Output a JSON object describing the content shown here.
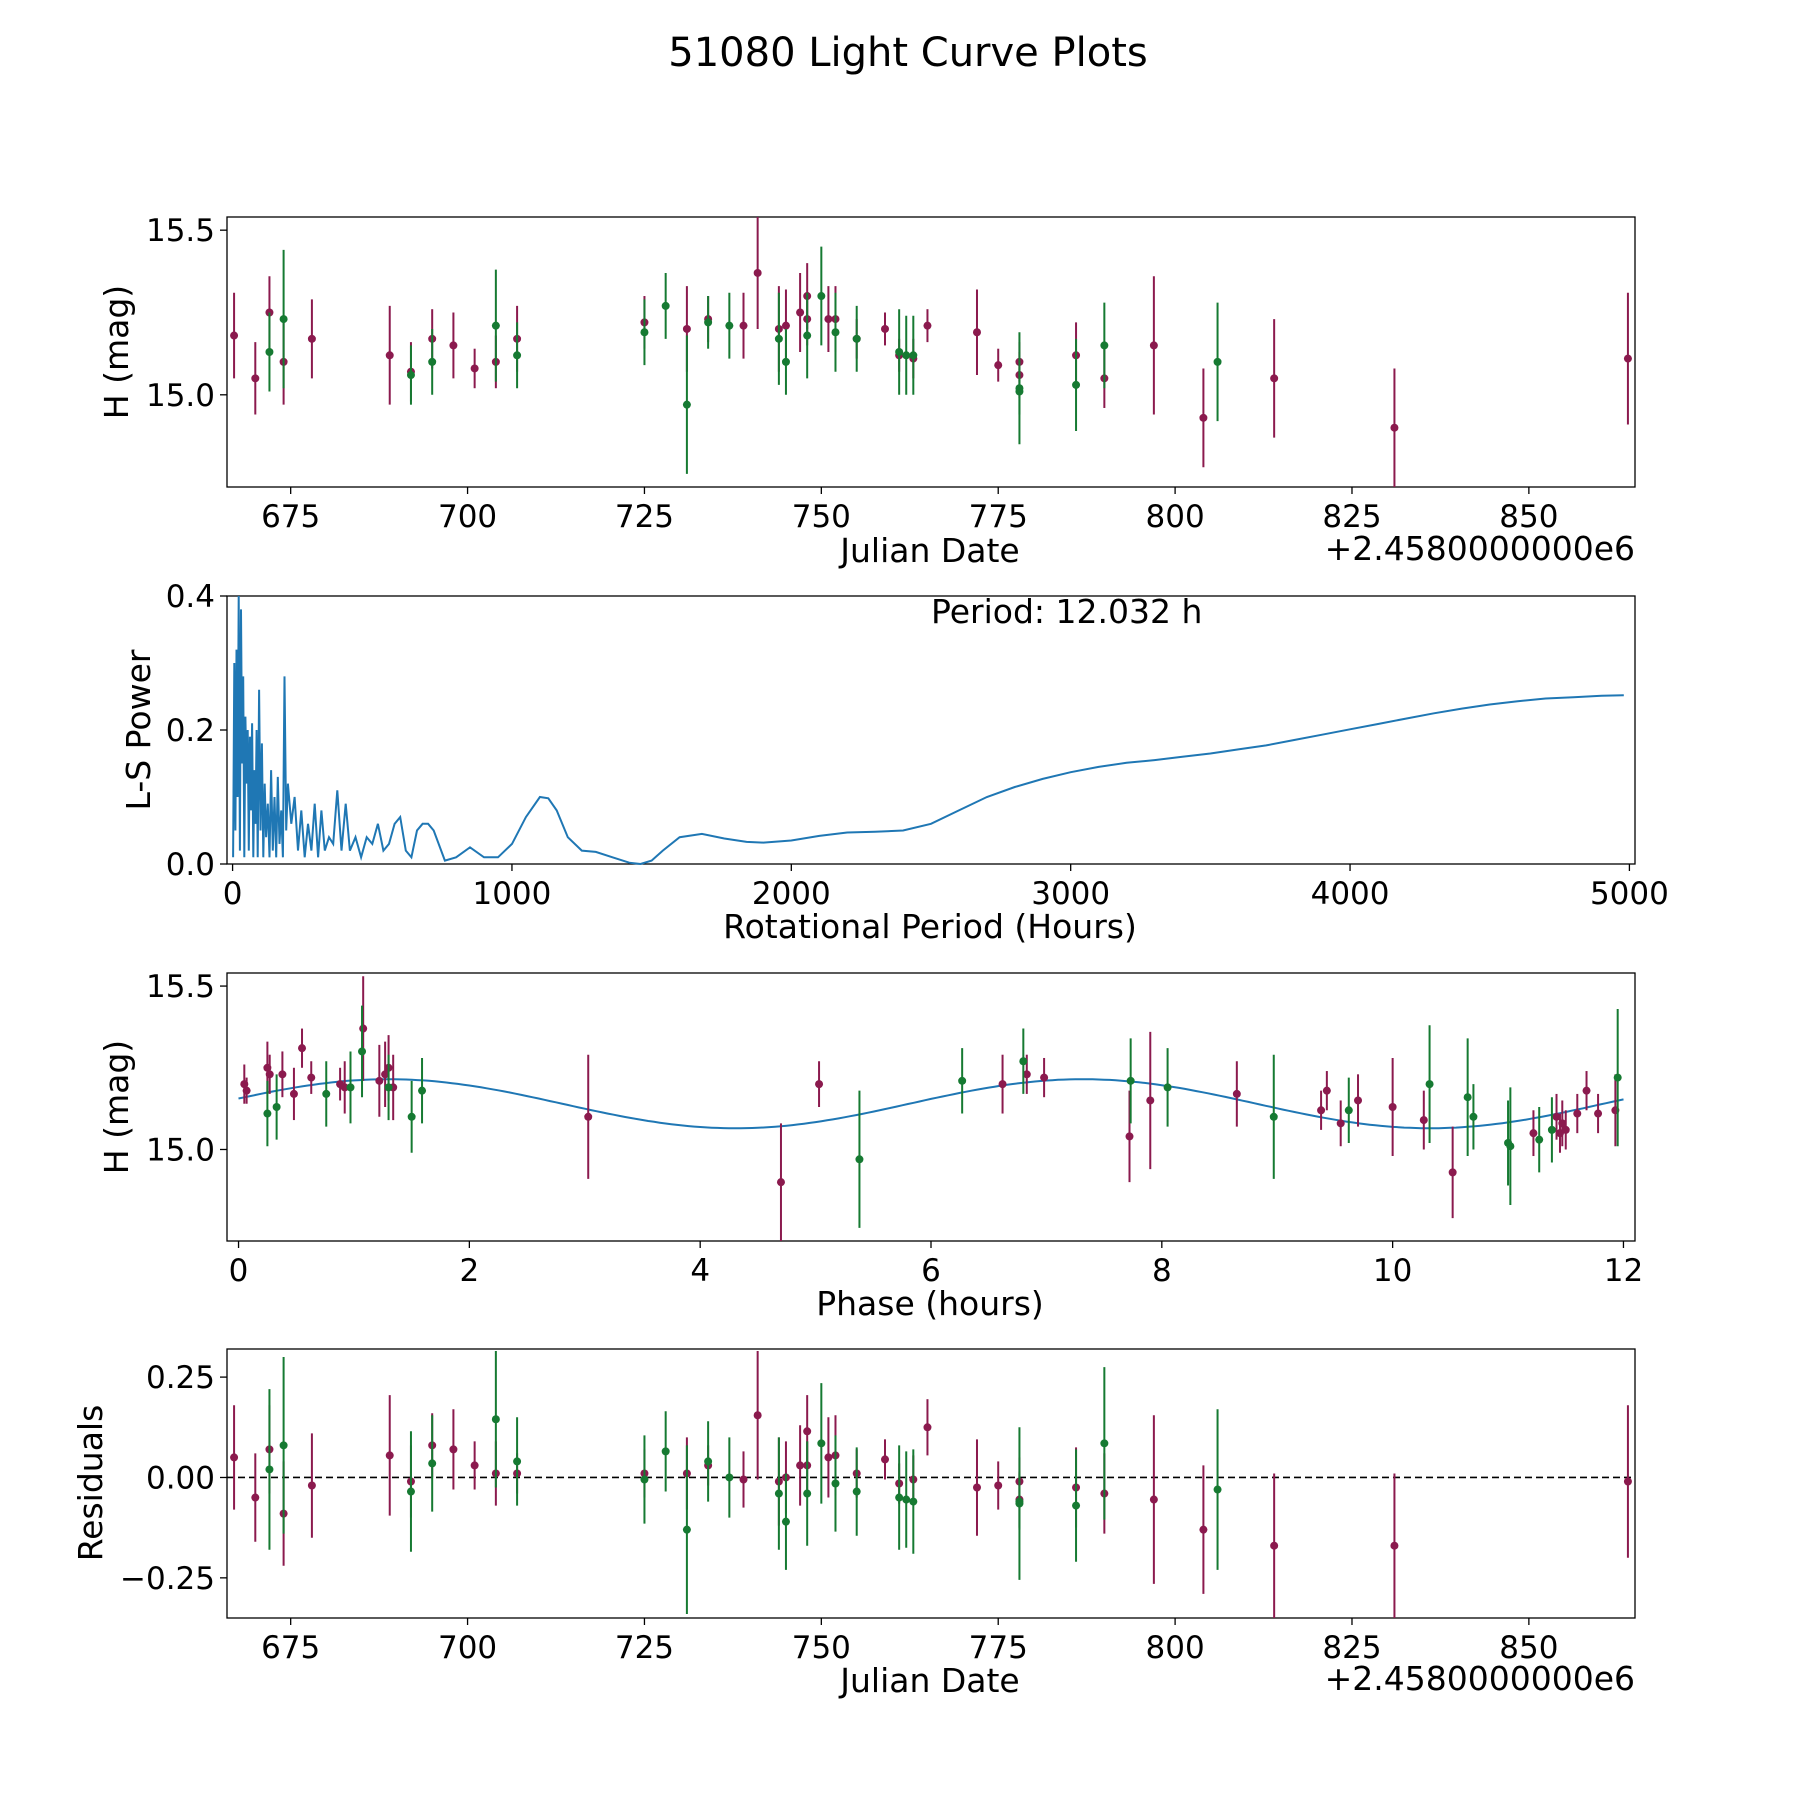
{
  "figure_title": "51080 Light Curve Plots",
  "colors": {
    "filter_r": "#8b1a4e",
    "filter_g": "#167a32",
    "curve": "#1f77b4",
    "zero_line": "#000000"
  },
  "chart_data": [
    {
      "id": "lightcurve",
      "type": "scatter",
      "title": "",
      "xlabel": "Julian Date",
      "ylabel": "H (mag)",
      "offset_label": "+2.4580000000e6",
      "xlim": [
        666,
        865
      ],
      "ylim": [
        14.72,
        15.54
      ],
      "xticks": [
        675,
        700,
        725,
        750,
        775,
        800,
        825,
        850
      ],
      "xtick_labels": [
        "675",
        "700",
        "725",
        "750",
        "775",
        "800",
        "825",
        "850"
      ],
      "yticks": [
        15.0,
        15.5
      ],
      "ytick_labels": [
        "15.0",
        "15.5"
      ],
      "series": [
        {
          "name": "r",
          "color": "#8b1a4e",
          "x": [
            667,
            670,
            672,
            674,
            678,
            689,
            692,
            695,
            698,
            701,
            704,
            707,
            725,
            731,
            734,
            739,
            741,
            744,
            745,
            747,
            748,
            748,
            751,
            752,
            755,
            759,
            761,
            763,
            765,
            772,
            775,
            778,
            778,
            786,
            790,
            797,
            804,
            814,
            831,
            864
          ],
          "y": [
            15.18,
            15.05,
            15.25,
            15.1,
            15.17,
            15.12,
            15.07,
            15.17,
            15.15,
            15.08,
            15.1,
            15.17,
            15.22,
            15.2,
            15.23,
            15.21,
            15.37,
            15.2,
            15.21,
            15.25,
            15.3,
            15.23,
            15.23,
            15.23,
            15.17,
            15.2,
            15.12,
            15.11,
            15.21,
            15.19,
            15.09,
            15.06,
            15.1,
            15.12,
            15.05,
            15.15,
            14.93,
            15.05,
            14.9,
            15.11
          ],
          "err": [
            0.13,
            0.11,
            0.11,
            0.13,
            0.12,
            0.15,
            0.09,
            0.09,
            0.1,
            0.06,
            0.08,
            0.1,
            0.08,
            0.13,
            0.07,
            0.1,
            0.17,
            0.13,
            0.11,
            0.12,
            0.1,
            0.08,
            0.1,
            0.1,
            0.06,
            0.05,
            0.05,
            0.06,
            0.05,
            0.13,
            0.05,
            0.07,
            0.06,
            0.1,
            0.09,
            0.21,
            0.15,
            0.18,
            0.18,
            0.2
          ]
        },
        {
          "name": "g",
          "color": "#167a32",
          "x": [
            672,
            674,
            692,
            695,
            704,
            707,
            725,
            728,
            731,
            734,
            737,
            744,
            745,
            748,
            750,
            752,
            755,
            761,
            762,
            763,
            778,
            778,
            786,
            790,
            806
          ],
          "y": [
            15.13,
            15.23,
            15.06,
            15.1,
            15.21,
            15.12,
            15.19,
            15.27,
            14.97,
            15.22,
            15.21,
            15.17,
            15.1,
            15.18,
            15.3,
            15.19,
            15.17,
            15.13,
            15.12,
            15.12,
            15.02,
            15.01,
            15.03,
            15.15,
            15.1
          ],
          "err": [
            0.12,
            0.21,
            0.09,
            0.1,
            0.17,
            0.1,
            0.1,
            0.1,
            0.21,
            0.08,
            0.1,
            0.14,
            0.1,
            0.13,
            0.15,
            0.12,
            0.1,
            0.13,
            0.12,
            0.12,
            0.17,
            0.07,
            0.14,
            0.13,
            0.18
          ]
        }
      ]
    },
    {
      "id": "periodogram",
      "type": "line",
      "title": "",
      "xlabel": "Rotational Period (Hours)",
      "ylabel": "L-S Power",
      "annotation": "Period: 12.032 h",
      "xlim": [
        -20,
        5020
      ],
      "ylim": [
        0,
        0.4
      ],
      "xticks": [
        0,
        1000,
        2000,
        3000,
        4000,
        5000
      ],
      "xtick_labels": [
        "0",
        "1000",
        "2000",
        "3000",
        "4000",
        "5000"
      ],
      "yticks": [
        0,
        0.2,
        0.4
      ],
      "ytick_labels": [
        "0.0",
        "0.2",
        "0.4"
      ],
      "series": [
        {
          "name": "L-S Power",
          "color": "#1f77b4",
          "x": [
            2,
            6,
            10,
            14,
            18,
            22,
            26,
            30,
            34,
            38,
            42,
            46,
            50,
            54,
            58,
            62,
            66,
            70,
            74,
            78,
            82,
            86,
            90,
            95,
            100,
            105,
            110,
            115,
            120,
            126,
            132,
            138,
            144,
            150,
            156,
            162,
            168,
            174,
            180,
            186,
            192,
            198,
            210,
            222,
            234,
            246,
            258,
            270,
            282,
            294,
            306,
            318,
            330,
            345,
            360,
            375,
            390,
            405,
            420,
            440,
            460,
            480,
            500,
            520,
            540,
            560,
            580,
            600,
            620,
            640,
            660,
            680,
            700,
            720,
            760,
            800,
            850,
            900,
            950,
            1000,
            1050,
            1100,
            1130,
            1160,
            1200,
            1250,
            1300,
            1360,
            1420,
            1460,
            1500,
            1540,
            1600,
            1680,
            1760,
            1840,
            1900,
            2000,
            2100,
            2200,
            2300,
            2400,
            2500,
            2600,
            2700,
            2800,
            2900,
            3000,
            3100,
            3200,
            3300,
            3400,
            3500,
            3600,
            3700,
            3800,
            3900,
            4000,
            4100,
            4200,
            4300,
            4400,
            4500,
            4600,
            4700,
            4800,
            4900,
            4980
          ],
          "y": [
            0.01,
            0.3,
            0.05,
            0.32,
            0.1,
            0.4,
            0.02,
            0.38,
            0.15,
            0.28,
            0.01,
            0.22,
            0.12,
            0.2,
            0.02,
            0.19,
            0.08,
            0.21,
            0.01,
            0.14,
            0.06,
            0.2,
            0.01,
            0.26,
            0.05,
            0.18,
            0.01,
            0.12,
            0.04,
            0.09,
            0.01,
            0.14,
            0.02,
            0.1,
            0.01,
            0.13,
            0.03,
            0.08,
            0.01,
            0.28,
            0.05,
            0.12,
            0.06,
            0.1,
            0.02,
            0.08,
            0.01,
            0.06,
            0.02,
            0.09,
            0.01,
            0.08,
            0.02,
            0.04,
            0.03,
            0.11,
            0.02,
            0.09,
            0.02,
            0.04,
            0.01,
            0.04,
            0.03,
            0.06,
            0.02,
            0.03,
            0.06,
            0.07,
            0.02,
            0.01,
            0.05,
            0.06,
            0.06,
            0.05,
            0.005,
            0.01,
            0.025,
            0.01,
            0.01,
            0.03,
            0.07,
            0.1,
            0.098,
            0.08,
            0.04,
            0.02,
            0.018,
            0.01,
            0.002,
            0.0,
            0.005,
            0.02,
            0.04,
            0.045,
            0.038,
            0.033,
            0.032,
            0.035,
            0.042,
            0.047,
            0.048,
            0.05,
            0.06,
            0.08,
            0.1,
            0.115,
            0.127,
            0.137,
            0.145,
            0.151,
            0.155,
            0.16,
            0.165,
            0.171,
            0.177,
            0.185,
            0.193,
            0.201,
            0.209,
            0.217,
            0.225,
            0.232,
            0.238,
            0.243,
            0.247,
            0.249,
            0.251,
            0.252
          ]
        }
      ]
    },
    {
      "id": "phased",
      "type": "scatter",
      "title": "",
      "xlabel": "Phase (hours)",
      "ylabel": "H (mag)",
      "xlim": [
        -0.1,
        12.1
      ],
      "ylim": [
        14.72,
        15.54
      ],
      "xticks": [
        0,
        2,
        4,
        6,
        8,
        10,
        12
      ],
      "xtick_labels": [
        "0",
        "2",
        "4",
        "6",
        "8",
        "10",
        "12"
      ],
      "yticks": [
        15.0,
        15.5
      ],
      "ytick_labels": [
        "15.0",
        "15.5"
      ],
      "model": {
        "name": "fit",
        "color": "#1f77b4",
        "mean": 15.14,
        "amplitude": 0.075,
        "period": 6.016,
        "peak_phase": 1.3
      },
      "series": [
        {
          "name": "r",
          "color": "#8b1a4e",
          "x": [
            0.05,
            0.07,
            0.25,
            0.27,
            0.38,
            0.48,
            0.55,
            0.63,
            0.88,
            0.92,
            1.08,
            1.22,
            1.27,
            1.3,
            1.34,
            3.03,
            4.7,
            5.03,
            6.62,
            6.83,
            6.98,
            7.72,
            7.9,
            8.65,
            9.38,
            9.43,
            9.55,
            9.7,
            10.0,
            10.27,
            10.52,
            11.22,
            11.42,
            11.45,
            11.47,
            11.5,
            11.6,
            11.68,
            11.78,
            11.93
          ],
          "y": [
            15.2,
            15.18,
            15.25,
            15.23,
            15.23,
            15.17,
            15.31,
            15.22,
            15.2,
            15.19,
            15.37,
            15.21,
            15.23,
            15.25,
            15.19,
            15.1,
            14.9,
            15.2,
            15.2,
            15.23,
            15.22,
            15.04,
            15.15,
            15.17,
            15.12,
            15.18,
            15.08,
            15.15,
            15.13,
            15.09,
            14.93,
            15.05,
            15.1,
            15.05,
            15.08,
            15.06,
            15.11,
            15.18,
            15.11,
            15.12
          ],
          "err": [
            0.06,
            0.04,
            0.08,
            0.06,
            0.07,
            0.08,
            0.06,
            0.05,
            0.05,
            0.08,
            0.16,
            0.11,
            0.1,
            0.1,
            0.1,
            0.19,
            0.18,
            0.07,
            0.09,
            0.06,
            0.06,
            0.14,
            0.21,
            0.1,
            0.06,
            0.06,
            0.07,
            0.08,
            0.15,
            0.09,
            0.14,
            0.07,
            0.07,
            0.06,
            0.07,
            0.06,
            0.06,
            0.06,
            0.06,
            0.11
          ]
        },
        {
          "name": "g",
          "color": "#167a32",
          "x": [
            0.25,
            0.33,
            0.76,
            0.97,
            1.07,
            1.3,
            1.5,
            1.59,
            5.38,
            6.27,
            6.8,
            7.73,
            8.05,
            8.97,
            9.62,
            10.32,
            10.65,
            10.7,
            11.0,
            11.02,
            11.27,
            11.38,
            11.95
          ],
          "y": [
            15.11,
            15.13,
            15.17,
            15.19,
            15.3,
            15.19,
            15.1,
            15.18,
            14.97,
            15.21,
            15.27,
            15.21,
            15.19,
            15.1,
            15.12,
            15.2,
            15.16,
            15.1,
            15.02,
            15.01,
            15.03,
            15.06,
            15.22
          ],
          "err": [
            0.1,
            0.1,
            0.1,
            0.11,
            0.14,
            0.1,
            0.11,
            0.1,
            0.21,
            0.1,
            0.1,
            0.13,
            0.12,
            0.19,
            0.1,
            0.18,
            0.18,
            0.1,
            0.13,
            0.18,
            0.1,
            0.1,
            0.21
          ]
        }
      ]
    },
    {
      "id": "residuals",
      "type": "scatter",
      "title": "",
      "xlabel": "Julian Date",
      "ylabel": "Residuals",
      "offset_label": "+2.4580000000e6",
      "zero_line": 0,
      "xlim": [
        666,
        865
      ],
      "ylim": [
        -0.35,
        0.32
      ],
      "xticks": [
        675,
        700,
        725,
        750,
        775,
        800,
        825,
        850
      ],
      "xtick_labels": [
        "675",
        "700",
        "725",
        "750",
        "775",
        "800",
        "825",
        "850"
      ],
      "yticks": [
        -0.25,
        0.0,
        0.25
      ],
      "ytick_labels": [
        "−0.25",
        "0.00",
        "0.25"
      ],
      "series": [
        {
          "name": "r",
          "color": "#8b1a4e",
          "x": [
            667,
            670,
            672,
            674,
            678,
            689,
            692,
            695,
            698,
            701,
            704,
            707,
            725,
            731,
            734,
            739,
            741,
            744,
            745,
            747,
            748,
            748,
            751,
            752,
            755,
            759,
            761,
            763,
            765,
            772,
            775,
            778,
            778,
            786,
            790,
            797,
            804,
            814,
            831,
            864
          ],
          "y": [
            0.05,
            -0.05,
            0.07,
            -0.09,
            -0.02,
            0.055,
            -0.01,
            0.08,
            0.07,
            0.03,
            0.01,
            0.01,
            0.01,
            0.01,
            0.03,
            -0.005,
            0.155,
            -0.01,
            0.0,
            0.03,
            0.115,
            0.03,
            0.05,
            0.055,
            0.01,
            0.045,
            -0.015,
            -0.005,
            0.125,
            -0.025,
            -0.02,
            -0.055,
            -0.01,
            -0.025,
            -0.04,
            -0.055,
            -0.13,
            -0.17,
            -0.17,
            -0.01
          ],
          "err": [
            0.13,
            0.11,
            0.11,
            0.13,
            0.13,
            0.15,
            0.09,
            0.08,
            0.1,
            0.06,
            0.08,
            0.05,
            0.06,
            0.09,
            0.05,
            0.07,
            0.16,
            0.11,
            0.09,
            0.1,
            0.09,
            0.06,
            0.1,
            0.1,
            0.06,
            0.05,
            0.05,
            0.06,
            0.07,
            0.12,
            0.06,
            0.07,
            0.06,
            0.1,
            0.1,
            0.21,
            0.16,
            0.18,
            0.18,
            0.19
          ]
        },
        {
          "name": "g",
          "color": "#167a32",
          "x": [
            672,
            674,
            692,
            695,
            704,
            707,
            725,
            728,
            731,
            734,
            737,
            744,
            745,
            748,
            750,
            752,
            755,
            761,
            762,
            763,
            778,
            778,
            786,
            790,
            806
          ],
          "y": [
            0.02,
            0.08,
            -0.035,
            0.035,
            0.145,
            0.04,
            -0.005,
            0.065,
            -0.13,
            0.04,
            0.0,
            -0.04,
            -0.11,
            -0.04,
            0.085,
            -0.015,
            -0.035,
            -0.05,
            -0.055,
            -0.06,
            -0.065,
            -0.06,
            -0.07,
            0.085,
            -0.03
          ],
          "err": [
            0.2,
            0.22,
            0.15,
            0.12,
            0.17,
            0.11,
            0.11,
            0.1,
            0.21,
            0.1,
            0.1,
            0.14,
            0.12,
            0.13,
            0.15,
            0.12,
            0.11,
            0.13,
            0.12,
            0.13,
            0.19,
            0.07,
            0.14,
            0.19,
            0.2
          ]
        }
      ]
    }
  ]
}
